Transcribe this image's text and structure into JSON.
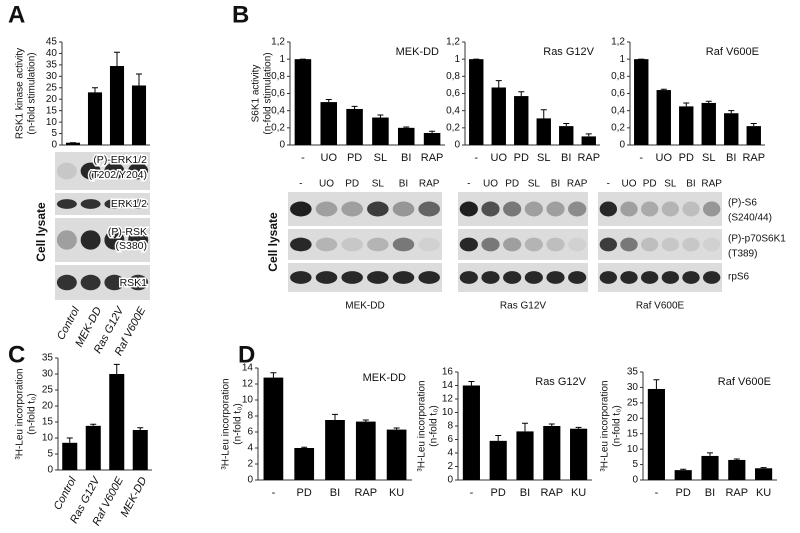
{
  "panels": [
    "A",
    "B",
    "C",
    "D"
  ],
  "chart_data": [
    {
      "type": "bar",
      "ylabel": [
        "RSK1 kinase activity",
        "(n-fold stimulation)"
      ],
      "categories": [
        "Control",
        "MEK-DD",
        "Ras G12V",
        "Raf V600E"
      ],
      "values": [
        1,
        23,
        34.5,
        26
      ],
      "errors": [
        0,
        2,
        6,
        5
      ],
      "color": "#000000",
      "ylim": [
        0,
        45
      ],
      "yticks": [
        0,
        5,
        10,
        15,
        20,
        25,
        30,
        35,
        40,
        45
      ]
    },
    {
      "type": "bar",
      "title": "MEK-DD",
      "ylabel": [
        "S6K1 activity",
        "(n-fold stimulation)"
      ],
      "categories": [
        "-",
        "UO",
        "PD",
        "SL",
        "BI",
        "RAP"
      ],
      "values": [
        1,
        0.5,
        0.42,
        0.32,
        0.2,
        0.14
      ],
      "errors": [
        0,
        0.03,
        0.03,
        0.03,
        0.01,
        0.02
      ],
      "color": "#000000",
      "ylim": [
        0,
        1.2
      ],
      "yticks": [
        0,
        {
          "value": 0.2,
          "label": "0,2"
        },
        {
          "value": 0.4,
          "label": "0,4"
        },
        {
          "value": 0.6,
          "label": "0,6"
        },
        {
          "value": 0.8,
          "label": "0,8"
        },
        1,
        {
          "value": 1.2,
          "label": "1,2"
        }
      ]
    },
    {
      "type": "bar",
      "title": "Ras G12V",
      "categories": [
        "-",
        "UO",
        "PD",
        "SL",
        "BI",
        "RAP"
      ],
      "values": [
        1,
        0.67,
        0.57,
        0.31,
        0.22,
        0.1
      ],
      "errors": [
        0,
        0.08,
        0.05,
        0.1,
        0.03,
        0.03
      ],
      "color": "#000000",
      "ylim": [
        0,
        1.2
      ],
      "yticks": [
        0,
        {
          "value": 0.2,
          "label": "0,2"
        },
        {
          "value": 0.4,
          "label": "0,4"
        },
        {
          "value": 0.6,
          "label": "0,6"
        },
        {
          "value": 0.8,
          "label": "0,8"
        },
        1,
        {
          "value": 1.2,
          "label": "1,2"
        }
      ]
    },
    {
      "type": "bar",
      "title": "Raf V600E",
      "categories": [
        "-",
        "UO",
        "PD",
        "SL",
        "BI",
        "RAP"
      ],
      "values": [
        1,
        0.64,
        0.45,
        0.49,
        0.37,
        0.22
      ],
      "errors": [
        0,
        0.01,
        0.04,
        0.02,
        0.03,
        0.03
      ],
      "color": "#000000",
      "ylim": [
        0,
        1.2
      ],
      "yticks": [
        0,
        {
          "value": 0.2,
          "label": "0,2"
        },
        {
          "value": 0.4,
          "label": "0,4"
        },
        {
          "value": 0.6,
          "label": "0,6"
        },
        {
          "value": 0.8,
          "label": "0,8"
        },
        1,
        {
          "value": 1.2,
          "label": "1,2"
        }
      ]
    },
    {
      "type": "bar",
      "ylabel": [
        "³H-Leu incorporation",
        "(n-fold t₀)"
      ],
      "categories": [
        "Control",
        "Ras G12V",
        "Raf V600E",
        "MEK-DD"
      ],
      "values": [
        8.5,
        13.8,
        30,
        12.5
      ],
      "errors": [
        1.5,
        0.5,
        3,
        0.7
      ],
      "color": "#000000",
      "ylim": [
        0,
        35
      ],
      "yticks": [
        0,
        5,
        10,
        15,
        20,
        25,
        30,
        35
      ]
    },
    {
      "type": "bar",
      "title": "MEK-DD",
      "ylabel": [
        "³H-Leu incorporation",
        "(n-fold t₀)"
      ],
      "categories": [
        "-",
        "PD",
        "BI",
        "RAP",
        "KU"
      ],
      "values": [
        12.8,
        4,
        7.5,
        7.3,
        6.3
      ],
      "errors": [
        0.6,
        0.1,
        0.7,
        0.2,
        0.2
      ],
      "color": "#000000",
      "ylim": [
        0,
        14
      ],
      "yticks": [
        0,
        2,
        4,
        6,
        8,
        10,
        12,
        14
      ]
    },
    {
      "type": "bar",
      "title": "Ras G12V",
      "ylabel": [
        "³H-Leu incorporation",
        "(n-fold t₀)"
      ],
      "categories": [
        "-",
        "PD",
        "BI",
        "RAP",
        "KU"
      ],
      "values": [
        14,
        5.8,
        7.2,
        8,
        7.6
      ],
      "errors": [
        0.6,
        0.8,
        1.2,
        0.3,
        0.2
      ],
      "color": "#000000",
      "ylim": [
        0,
        16
      ],
      "yticks": [
        0,
        2,
        4,
        6,
        8,
        10,
        12,
        14,
        16
      ]
    },
    {
      "type": "bar",
      "title": "Raf V600E",
      "ylabel": [
        "³H-Leu incorporation",
        "(n-fold t₀)"
      ],
      "categories": [
        "-",
        "PD",
        "BI",
        "RAP",
        "KU"
      ],
      "values": [
        29.5,
        3.2,
        7.8,
        6.5,
        3.8
      ],
      "errors": [
        3,
        0.3,
        1,
        0.3,
        0.2
      ],
      "color": "#000000",
      "ylim": [
        0,
        35
      ],
      "yticks": [
        0,
        5,
        10,
        15,
        20,
        25,
        30,
        35
      ]
    }
  ],
  "blots": {
    "A": {
      "side": "Cell lysate",
      "labels": [
        "(P)-ERK1/2",
        "(T202/Y204)",
        "ERK1/2",
        "(P)-RSK",
        "(S380)",
        "RSK1"
      ]
    },
    "B": {
      "side": "Cell lysate",
      "labels": [
        "(P)-S6",
        "(S240/44)",
        "(P)-p70S6K1",
        "(T389)",
        "rpS6"
      ],
      "groups": [
        {
          "name": "MEK-DD",
          "lanes": [
            "-",
            "UO",
            "PD",
            "SL",
            "BI",
            "RAP"
          ]
        },
        {
          "name": "Ras G12V",
          "lanes": [
            "-",
            "UO",
            "PD",
            "SL",
            "BI",
            "RAP"
          ]
        },
        {
          "name": "Raf V600E",
          "lanes": [
            "-",
            "UO",
            "PD",
            "SL",
            "BI",
            "RAP"
          ]
        }
      ]
    }
  }
}
